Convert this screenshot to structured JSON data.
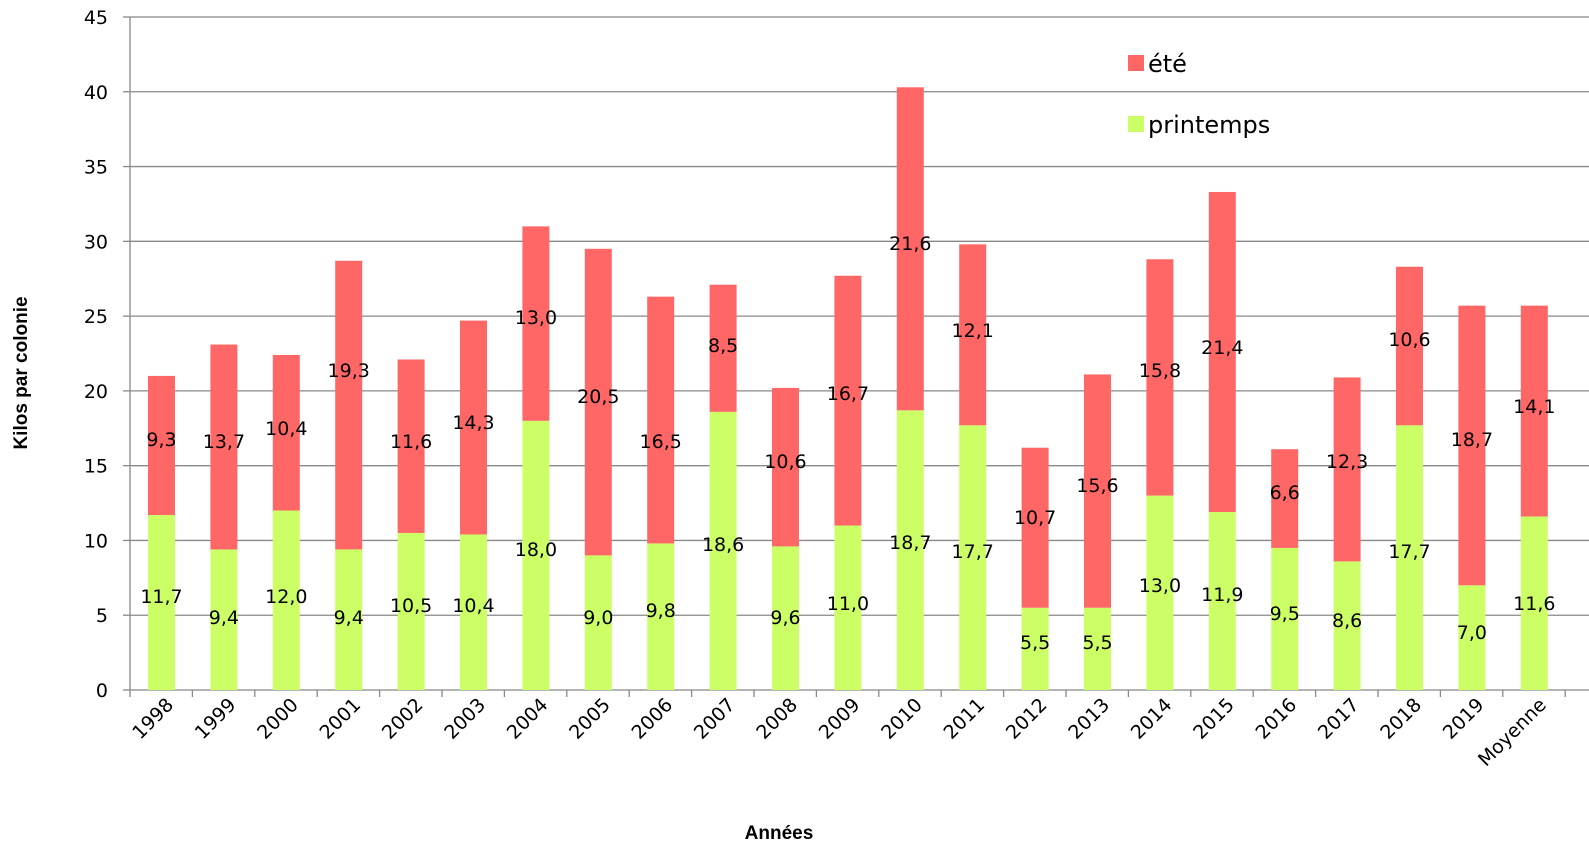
{
  "chart_data": {
    "type": "bar",
    "stacked": true,
    "categories": [
      "1998",
      "1999",
      "2000",
      "2001",
      "2002",
      "2003",
      "2004",
      "2005",
      "2006",
      "2007",
      "2008",
      "2009",
      "2010",
      "2011",
      "2012",
      "2013",
      "2014",
      "2015",
      "2016",
      "2017",
      "2018",
      "2019",
      "Moyenne"
    ],
    "series": [
      {
        "name": "printemps",
        "color": "#ccff66",
        "values": [
          11.7,
          9.4,
          12.0,
          9.4,
          10.5,
          10.4,
          18.0,
          9.0,
          9.8,
          18.6,
          9.6,
          11.0,
          18.7,
          17.7,
          5.5,
          5.5,
          13.0,
          11.9,
          9.5,
          8.6,
          17.7,
          7.0,
          11.6
        ],
        "labels": [
          "11,7",
          "9,4",
          "12,0",
          "9,4",
          "10,5",
          "10,4",
          "18,0",
          "9,0",
          "9,8",
          "18,6",
          "9,6",
          "11,0",
          "18,7",
          "17,7",
          "5,5",
          "5,5",
          "13,0",
          "11,9",
          "9,5",
          "8,6",
          "17,7",
          "7,0",
          "11,6"
        ]
      },
      {
        "name": "été",
        "color": "#ff6666",
        "values": [
          9.3,
          13.7,
          10.4,
          19.3,
          11.6,
          14.3,
          13.0,
          20.5,
          16.5,
          8.5,
          10.6,
          16.7,
          21.6,
          12.1,
          10.7,
          15.6,
          15.8,
          21.4,
          6.6,
          12.3,
          10.6,
          18.7,
          14.1
        ],
        "labels": [
          "9,3",
          "13,7",
          "10,4",
          "19,3",
          "11,6",
          "14,3",
          "13,0",
          "20,5",
          "16,5",
          "8,5",
          "10,6",
          "16,7",
          "21,6",
          "12,1",
          "10,7",
          "15,6",
          "15,8",
          "21,4",
          "6,6",
          "12,3",
          "10,6",
          "18,7",
          "14,1"
        ]
      }
    ],
    "title": "",
    "xlabel": "Années",
    "ylabel": "Kilos par colonie",
    "ylim": [
      0,
      45
    ],
    "yticks": [
      0,
      5,
      10,
      15,
      20,
      25,
      30,
      35,
      40,
      45
    ],
    "grid": true,
    "legend_position": "top-right",
    "legend_order": [
      "été",
      "printemps"
    ]
  }
}
